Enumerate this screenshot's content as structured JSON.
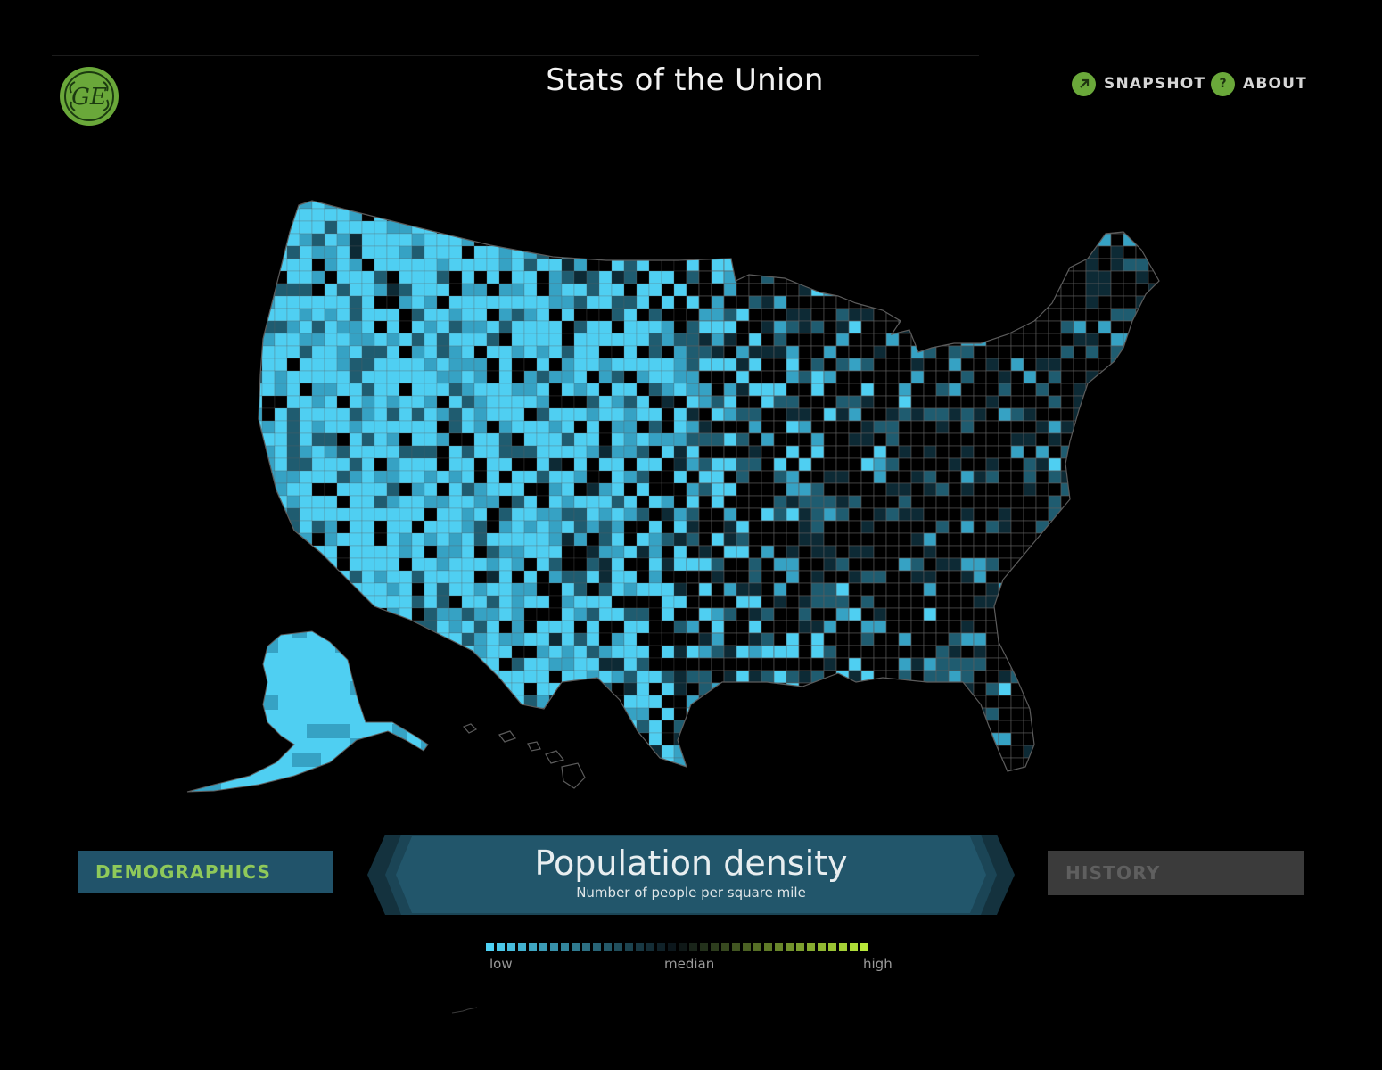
{
  "header": {
    "title": "Stats of the Union",
    "snapshot_label": "SNAPSHOT",
    "about_label": "ABOUT",
    "about_icon_glyph": "?",
    "logo_text": "GE"
  },
  "map": {
    "subject": "United States county population density",
    "colors": {
      "light": "#4fcff2",
      "mid": "#36a2c4",
      "dark": "#1f5c70",
      "border": "#5c5c5c"
    }
  },
  "tabs": {
    "left_label": "DEMOGRAPHICS",
    "right_label": "HISTORY"
  },
  "banner": {
    "title": "Population density",
    "subtitle": "Number of people per square mile"
  },
  "legend": {
    "low": "low",
    "median": "median",
    "high": "high",
    "colors_low": "#4fd2f5",
    "colors_high": "#b8e83a"
  },
  "colors": {
    "accent_green": "#8fc95a",
    "tab_blue": "#21536a",
    "tab_gray": "#3b3b3b",
    "background": "#000000"
  }
}
